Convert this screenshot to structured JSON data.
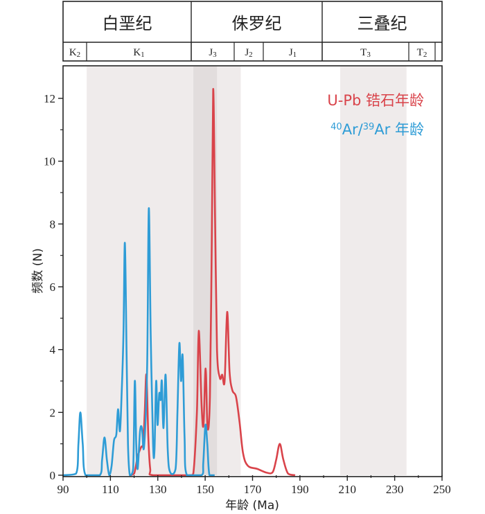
{
  "timescale": {
    "periods": [
      {
        "name": "白垩纪",
        "from": 90,
        "to": 145
      },
      {
        "name": "侏罗纪",
        "from": 145,
        "to": 201
      },
      {
        "name": "三叠纪",
        "from": 201,
        "to": 250
      }
    ],
    "epochs": [
      {
        "name": "K",
        "sub": "2",
        "from": 90,
        "to": 100
      },
      {
        "name": "K",
        "sub": "1",
        "from": 100,
        "to": 145
      },
      {
        "name": "J",
        "sub": "3",
        "from": 145,
        "to": 163
      },
      {
        "name": "J",
        "sub": "2",
        "from": 163,
        "to": 175
      },
      {
        "name": "J",
        "sub": "1",
        "from": 175,
        "to": 201
      },
      {
        "name": "T",
        "sub": "3",
        "from": 201,
        "to": 237
      },
      {
        "name": "T",
        "sub": "2",
        "from": 237,
        "to": 247
      }
    ]
  },
  "shaded_bands": [
    {
      "from": 100,
      "to": 165,
      "color": "#efebeb"
    },
    {
      "from": 145,
      "to": 155,
      "color": "#e2dddd"
    },
    {
      "from": 207,
      "to": 235,
      "color": "#efebeb"
    }
  ],
  "chart_data": {
    "type": "line",
    "title": "",
    "xlabel": "年龄 (Ma)",
    "ylabel": "频数 (N)",
    "xlim": [
      90,
      250
    ],
    "ylim": [
      0,
      13
    ],
    "xticks": [
      90,
      110,
      130,
      150,
      170,
      190,
      210,
      230,
      250
    ],
    "yticks": [
      0,
      2,
      4,
      6,
      8,
      10,
      12
    ],
    "grid": false,
    "legend_position": "top-right",
    "series": [
      {
        "name": "U-Pb 锆石年龄",
        "legend_html": "U-Pb 锆石年龄",
        "color": "#d9434a",
        "points": [
          [
            118,
            0
          ],
          [
            120,
            0.05
          ],
          [
            121.5,
            0.6
          ],
          [
            123,
            0.9
          ],
          [
            123.8,
            1.0
          ],
          [
            124.5,
            2.0
          ],
          [
            125.2,
            3.2
          ],
          [
            126,
            1.2
          ],
          [
            126.8,
            0.2
          ],
          [
            128,
            0
          ],
          [
            143,
            0
          ],
          [
            145,
            0.05
          ],
          [
            146.5,
            2.0
          ],
          [
            147.3,
            4.6
          ],
          [
            148.5,
            2.2
          ],
          [
            149.3,
            1.6
          ],
          [
            150.2,
            3.4
          ],
          [
            151,
            1.5
          ],
          [
            152,
            2.5
          ],
          [
            152.8,
            7.5
          ],
          [
            153.4,
            12.3
          ],
          [
            154.2,
            8.0
          ],
          [
            155,
            4.0
          ],
          [
            156.2,
            3.1
          ],
          [
            157.2,
            3.2
          ],
          [
            158.2,
            3.0
          ],
          [
            159.3,
            5.2
          ],
          [
            160.3,
            3.3
          ],
          [
            161.5,
            2.7
          ],
          [
            163,
            2.5
          ],
          [
            164.5,
            1.7
          ],
          [
            166,
            0.7
          ],
          [
            168,
            0.3
          ],
          [
            172,
            0.2
          ],
          [
            176,
            0.08
          ],
          [
            178.5,
            0.1
          ],
          [
            180,
            0.5
          ],
          [
            181.5,
            1.0
          ],
          [
            183,
            0.5
          ],
          [
            185,
            0.05
          ],
          [
            188,
            0
          ]
        ]
      },
      {
        "name": "40Ar/39Ar 年龄",
        "legend_html": "<tspan baseline-shift='super' font-size='13'>40</tspan>Ar/<tspan baseline-shift='super' font-size='13'>39</tspan>Ar 年龄",
        "color": "#2e9cd6",
        "points": [
          [
            90,
            0
          ],
          [
            95.5,
            0.05
          ],
          [
            96.5,
            1.0
          ],
          [
            97.3,
            2.0
          ],
          [
            98.3,
            1.0
          ],
          [
            99.5,
            0
          ],
          [
            105.5,
            0
          ],
          [
            106.5,
            0.5
          ],
          [
            107.5,
            1.2
          ],
          [
            108.5,
            0.5
          ],
          [
            109.5,
            0
          ],
          [
            110.5,
            0.3
          ],
          [
            111.5,
            1.1
          ],
          [
            112.5,
            1.3
          ],
          [
            113.2,
            2.1
          ],
          [
            114,
            1.4
          ],
          [
            114.7,
            2.5
          ],
          [
            115.5,
            4.5
          ],
          [
            116.1,
            7.4
          ],
          [
            116.8,
            4.0
          ],
          [
            117.4,
            1.0
          ],
          [
            118.2,
            0
          ],
          [
            119.6,
            0.2
          ],
          [
            120.3,
            3.0
          ],
          [
            120.9,
            1.0
          ],
          [
            121.5,
            0.2
          ],
          [
            122.5,
            1.4
          ],
          [
            123.3,
            1.5
          ],
          [
            124.2,
            0.9
          ],
          [
            125.5,
            3.5
          ],
          [
            126.2,
            8.5
          ],
          [
            127,
            4.5
          ],
          [
            128,
            1.0
          ],
          [
            128.6,
            0.8
          ],
          [
            129.3,
            3.0
          ],
          [
            129.9,
            1.6
          ],
          [
            130.6,
            2.6
          ],
          [
            131.2,
            2.4
          ],
          [
            131.7,
            3.0
          ],
          [
            132.4,
            1.5
          ],
          [
            133.3,
            3.2
          ],
          [
            134.2,
            0.8
          ],
          [
            135.2,
            0.1
          ],
          [
            137.5,
            0.2
          ],
          [
            138.3,
            2.0
          ],
          [
            139.1,
            4.2
          ],
          [
            139.8,
            3.0
          ],
          [
            140.5,
            3.8
          ],
          [
            141.3,
            1.2
          ],
          [
            142.3,
            0
          ],
          [
            148.5,
            0
          ],
          [
            149.2,
            0.4
          ],
          [
            150.1,
            1.6
          ],
          [
            150.9,
            1.0
          ],
          [
            151.8,
            0
          ],
          [
            154,
            0
          ]
        ]
      }
    ]
  }
}
